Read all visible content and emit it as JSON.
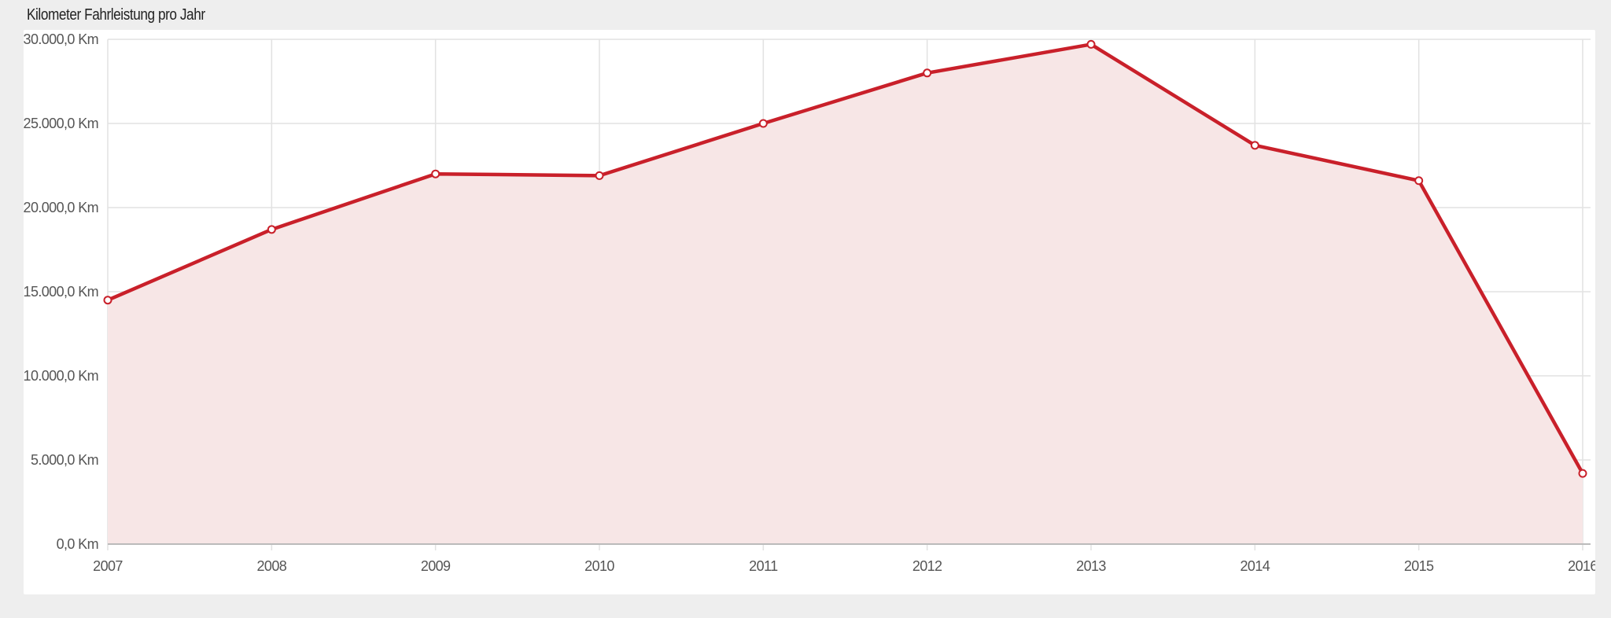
{
  "panel": {
    "title": "Kilometer Fahrleistung pro Jahr"
  },
  "chart_data": {
    "type": "area",
    "x": [
      "2007",
      "2008",
      "2009",
      "2010",
      "2011",
      "2012",
      "2013",
      "2014",
      "2015",
      "2016"
    ],
    "series": [
      {
        "values": [
          14500,
          18700,
          22000,
          21900,
          25000,
          28000,
          29700,
          23700,
          21600,
          4200
        ]
      }
    ],
    "yticks": [
      0,
      5000,
      10000,
      15000,
      20000,
      25000,
      30000
    ],
    "ytick_labels": [
      "0,0 Km",
      "5.000,0 Km",
      "10.000,0 Km",
      "15.000,0 Km",
      "20.000,0 Km",
      "25.000,0 Km",
      "30.000,0 Km"
    ],
    "ylim": [
      0,
      30000
    ],
    "grid": true,
    "legend": "none",
    "colors": {
      "line": "#c9202a",
      "fill": "#f7e6e6",
      "grid": "#e2e2e2",
      "axis": "#bbbbbb"
    }
  }
}
